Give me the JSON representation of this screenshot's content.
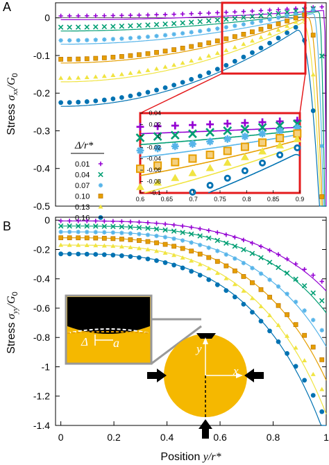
{
  "panels": {
    "a_letter": "A",
    "b_letter": "B"
  },
  "labels": {
    "ylabel_a_prefix": "Stress ",
    "ylabel_a_sym": "σ",
    "ylabel_a_sub": "xx",
    "ylabel_a_div": "/G",
    "ylabel_a_sub0": "0",
    "ylabel_b_prefix": "Stress ",
    "ylabel_b_sym": "σ",
    "ylabel_b_sub": "yy",
    "ylabel_b_div": "/G",
    "ylabel_b_sub0": "0",
    "xlabel_prefix": "Position ",
    "xlabel_sym": "y/r*",
    "legend_title": "Δ/r*",
    "schematic_delta": "Δ",
    "schematic_a": "a",
    "schematic_y": "y",
    "schematic_x": "x"
  },
  "colors": {
    "s1": "#9400d3",
    "s2": "#009e73",
    "s3": "#56b4e9",
    "s4": "#e69f00",
    "s5": "#f0e442",
    "s6": "#0072b2",
    "zoom_box": "#e41a1c",
    "disk": "#f5b800"
  },
  "chart_data": [
    {
      "type": "scatter",
      "panel": "A",
      "xlabel": "Position y/r*",
      "ylabel": "Stress σxx/G0",
      "xlim": [
        -0.02,
        1.0
      ],
      "ylim": [
        -0.5,
        0.04
      ],
      "yticks": [
        0,
        -0.1,
        -0.2,
        -0.3,
        -0.4,
        -0.5
      ],
      "ytick_labels": [
        "0",
        "-0.1",
        "-0.2",
        "-0.3",
        "-0.4",
        "-0.5"
      ],
      "legend_placement": "left",
      "series": [
        {
          "name": "0.01",
          "marker": "plus",
          "delta": 0.01,
          "y0": -0.005
        },
        {
          "name": "0.04",
          "marker": "cross",
          "delta": 0.04,
          "y0": -0.035
        },
        {
          "name": "0.07",
          "marker": "star",
          "delta": 0.07,
          "y0": -0.07
        },
        {
          "name": "0.10",
          "marker": "square",
          "delta": 0.1,
          "y0": -0.12
        },
        {
          "name": "0.13",
          "marker": "triangle",
          "delta": 0.13,
          "y0": -0.17
        },
        {
          "name": "0.16",
          "marker": "circle",
          "delta": 0.16,
          "y0": -0.235
        }
      ],
      "inset": {
        "xlim": [
          0.6,
          0.9
        ],
        "ylim": [
          -0.1,
          0.04
        ],
        "xticks": [
          0.6,
          0.65,
          0.7,
          0.75,
          0.8,
          0.85,
          0.9
        ],
        "xtick_labels": [
          "0.6",
          "0.65",
          "0.7",
          "0.75",
          "0.8",
          "0.85",
          "0.9"
        ],
        "yticks": [
          0.04,
          0.02,
          0,
          -0.02,
          -0.04,
          -0.06,
          -0.08,
          -0.1
        ],
        "ytick_labels": [
          "0.04",
          "0.02",
          "0",
          "-0.02",
          "-0.04",
          "-0.06",
          "-0.08",
          "-0.1"
        ]
      }
    },
    {
      "type": "scatter",
      "panel": "B",
      "xlabel": "Position y/r*",
      "ylabel": "Stress σyy/G0",
      "xlim": [
        -0.02,
        1.0
      ],
      "ylim": [
        -1.4,
        0.02
      ],
      "xticks": [
        0,
        0.2,
        0.4,
        0.6,
        0.8,
        1
      ],
      "xtick_labels": [
        "0",
        "0.2",
        "0.4",
        "0.6",
        "0.8",
        "1"
      ],
      "yticks": [
        0,
        -0.2,
        -0.4,
        -0.6,
        -0.8,
        -1,
        -1.2,
        -1.4
      ],
      "ytick_labels": [
        "0",
        "-0.2",
        "-0.4",
        "-0.6",
        "-0.8",
        "-1",
        "-1.2",
        "-1.4"
      ],
      "series": [
        {
          "name": "0.01",
          "y0": -0.005,
          "y1": -0.42
        },
        {
          "name": "0.04",
          "y0": -0.04,
          "y1": -0.55
        },
        {
          "name": "0.07",
          "y0": -0.08,
          "y1": -0.75
        },
        {
          "name": "0.10",
          "y0": -0.12,
          "y1": -0.95
        },
        {
          "name": "0.13",
          "y0": -0.17,
          "y1": -1.15
        },
        {
          "name": "0.16",
          "y0": -0.23,
          "y1": -1.3
        }
      ]
    }
  ]
}
